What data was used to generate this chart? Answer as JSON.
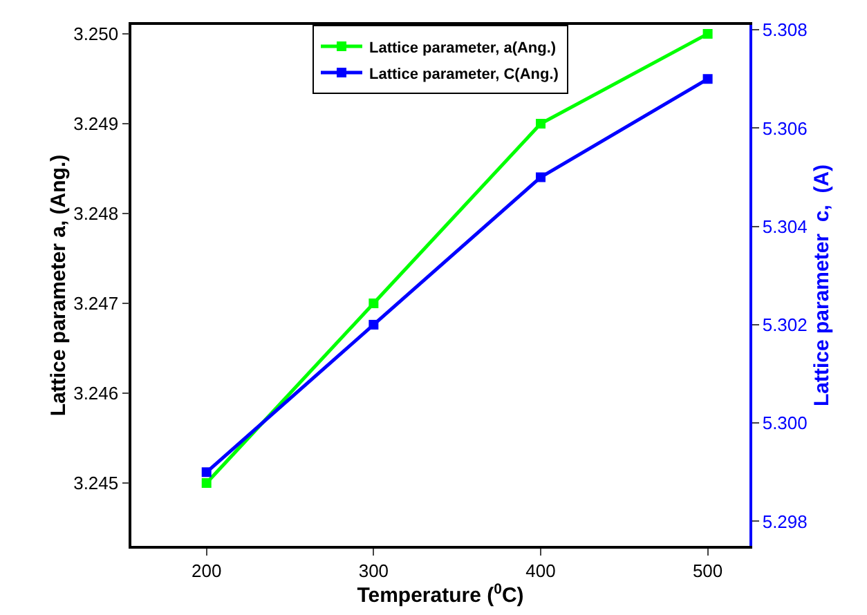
{
  "chart_data": {
    "type": "line",
    "xlabel": "Temperature ($^{0}$C)",
    "ylabel": "Lattice parameter a, (Ang.)",
    "y2label": "Lattice parameter  c,  (A)",
    "x": [
      200,
      300,
      400,
      500
    ],
    "series": [
      {
        "name": "Lattice parameter, a(Ang.)",
        "color": "#00ff00",
        "values": [
          3.245,
          3.247,
          3.249,
          3.25
        ]
      },
      {
        "name": "Lattice parameter, C(Ang.)",
        "color": "#0000ff",
        "values": [
          5.299,
          5.302,
          5.305,
          5.307
        ],
        "axis": "y2"
      }
    ],
    "xlim": [
      155,
      525
    ],
    "xticks": [
      200,
      300,
      400,
      500
    ],
    "ylim": [
      3.2443,
      3.2501
    ],
    "yticks": [
      {
        "value": 3.245,
        "label": "3.245"
      },
      {
        "value": 3.246,
        "label": "3.246"
      },
      {
        "value": 3.247,
        "label": "3.247"
      },
      {
        "value": 3.248,
        "label": "3.248"
      },
      {
        "value": 3.249,
        "label": "3.249"
      },
      {
        "value": 3.25,
        "label": "3.250"
      }
    ],
    "y2lim": [
      5.2975,
      5.3081
    ],
    "y2ticks": [
      {
        "value": 5.298,
        "label": "5.298"
      },
      {
        "value": 5.3,
        "label": "5.300"
      },
      {
        "value": 5.302,
        "label": "5.302"
      },
      {
        "value": 5.304,
        "label": "5.304"
      },
      {
        "value": 5.306,
        "label": "5.306"
      },
      {
        "value": 5.308,
        "label": "5.308"
      }
    ],
    "marker": "square",
    "line_style": "solid",
    "grid": false,
    "legend": "top"
  }
}
